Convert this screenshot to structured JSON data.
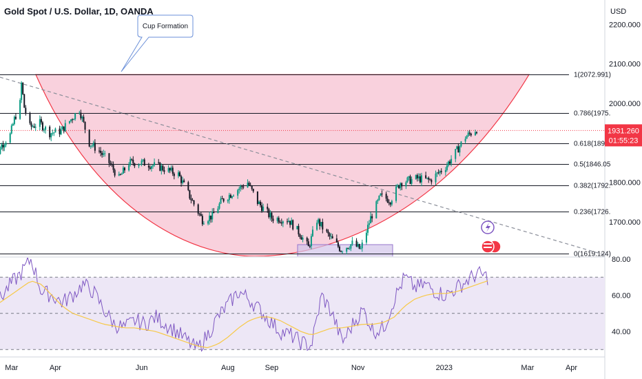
{
  "chart_data": {
    "type": "candlestick",
    "title": "Gold Spot / U.S. Dollar, 1D, OANDA",
    "currency": "USD",
    "y_ticks": [
      "2200.000",
      "2100.000",
      "2000.000",
      "1900.000",
      "1800.000",
      "1700.000"
    ],
    "y_tick_values": [
      2200,
      2100,
      2000,
      1900,
      1800,
      1700
    ],
    "ylim": [
      1610,
      2240
    ],
    "x_labels": [
      "Mar",
      "Apr",
      "Jun",
      "Aug",
      "Sep",
      "Nov",
      "2023",
      "Mar",
      "Apr"
    ],
    "x_label_dates": [
      "2022-03-01",
      "2022-04-01",
      "2022-06-01",
      "2022-08-01",
      "2022-09-01",
      "2022-11-01",
      "2023-01-01",
      "2023-03-01",
      "2023-04-01"
    ],
    "current_price": "1931.260",
    "countdown": "01:55:23",
    "annotation": "Cup Formation",
    "fib_levels": [
      {
        "label": "1(2072.991)",
        "value": 2072.991
      },
      {
        "label": "0.786(1975.",
        "value": 1975
      },
      {
        "label": "0.618(1899.",
        "value": 1899
      },
      {
        "label": "0.5(1846.05",
        "value": 1846.05
      },
      {
        "label": "0.382(1792.",
        "value": 1792
      },
      {
        "label": "0.236(1726.",
        "value": 1726
      },
      {
        "label": "0(1619.124)",
        "value": 1619.124
      }
    ],
    "price_series": [
      [
        "2022-02-14",
        1840
      ],
      [
        "2022-02-21",
        1890
      ],
      [
        "2022-02-28",
        1920
      ],
      [
        "2022-03-03",
        1960
      ],
      [
        "2022-03-07",
        2000
      ],
      [
        "2022-03-08",
        2050
      ],
      [
        "2022-03-10",
        1990
      ],
      [
        "2022-03-14",
        1940
      ],
      [
        "2022-03-21",
        1950
      ],
      [
        "2022-03-28",
        1925
      ],
      [
        "2022-04-05",
        1930
      ],
      [
        "2022-04-18",
        1985
      ],
      [
        "2022-04-25",
        1900
      ],
      [
        "2022-05-02",
        1880
      ],
      [
        "2022-05-09",
        1850
      ],
      [
        "2022-05-16",
        1810
      ],
      [
        "2022-05-23",
        1850
      ],
      [
        "2022-06-01",
        1850
      ],
      [
        "2022-06-13",
        1840
      ],
      [
        "2022-06-27",
        1820
      ],
      [
        "2022-07-05",
        1765
      ],
      [
        "2022-07-14",
        1705
      ],
      [
        "2022-07-21",
        1715
      ],
      [
        "2022-07-28",
        1755
      ],
      [
        "2022-08-05",
        1775
      ],
      [
        "2022-08-15",
        1800
      ],
      [
        "2022-08-22",
        1750
      ],
      [
        "2022-09-01",
        1710
      ],
      [
        "2022-09-13",
        1705
      ],
      [
        "2022-09-21",
        1670
      ],
      [
        "2022-09-27",
        1635
      ],
      [
        "2022-10-03",
        1705
      ],
      [
        "2022-10-10",
        1670
      ],
      [
        "2022-10-20",
        1630
      ],
      [
        "2022-10-28",
        1645
      ],
      [
        "2022-11-03",
        1630
      ],
      [
        "2022-11-10",
        1710
      ],
      [
        "2022-11-17",
        1765
      ],
      [
        "2022-11-24",
        1755
      ],
      [
        "2022-12-01",
        1800
      ],
      [
        "2022-12-13",
        1810
      ],
      [
        "2022-12-22",
        1805
      ],
      [
        "2023-01-02",
        1840
      ],
      [
        "2023-01-09",
        1875
      ],
      [
        "2023-01-16",
        1915
      ],
      [
        "2023-01-24",
        1935
      ]
    ],
    "rsi_ticks": [
      "80.00",
      "60.00",
      "40.00"
    ],
    "rsi_tick_values": [
      80,
      60,
      40
    ],
    "rsi_ylim": [
      28,
      82
    ],
    "rsi_levels": [
      70,
      50,
      30
    ],
    "rsi_series": [
      58,
      66,
      72,
      80,
      62,
      60,
      56,
      60,
      66,
      62,
      52,
      44,
      42,
      46,
      44,
      48,
      44,
      40,
      35,
      30,
      38,
      48,
      55,
      62,
      58,
      52,
      46,
      40,
      38,
      34,
      32,
      60,
      50,
      34,
      44,
      52,
      40,
      42,
      58,
      70,
      64,
      66,
      62,
      60,
      64,
      68,
      72,
      70
    ],
    "rsi_ma_series": [
      56,
      60,
      64,
      68,
      66,
      60,
      54,
      50,
      48,
      46,
      44,
      43,
      42,
      42,
      41,
      40,
      38,
      36,
      34,
      32,
      31,
      33,
      37,
      42,
      46,
      48,
      48,
      46,
      43,
      40,
      38,
      40,
      42,
      42,
      43,
      44,
      44,
      45,
      48,
      54,
      58,
      60,
      61,
      61,
      62,
      64,
      66,
      68
    ],
    "colors": {
      "up": "#089981",
      "down": "#131722",
      "cup_fill": "#f7c2d2",
      "cup_line": "#f23645",
      "rsi_line": "#7e57c2",
      "rsi_ma": "#f7c948",
      "rsi_band": "#ede7f6",
      "price_label": "#f23645",
      "price_line": "#f23645"
    }
  }
}
